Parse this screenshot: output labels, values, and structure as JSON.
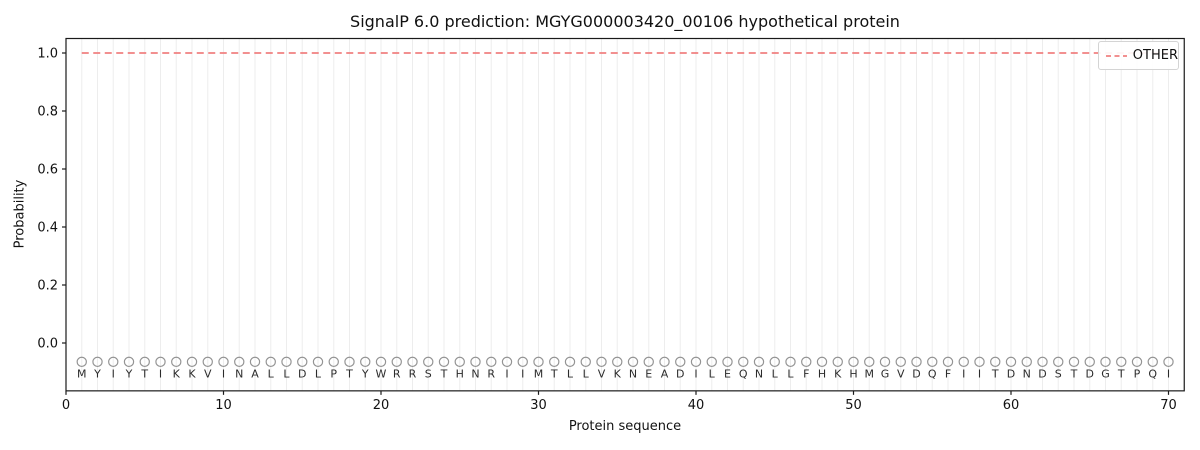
{
  "title": "SignalP 6.0 prediction: MGYG000003420_00106 hypothetical protein",
  "axes": {
    "x_label": "Protein sequence",
    "y_label": "Probability"
  },
  "legend": {
    "position": "upper right",
    "items": [
      {
        "label": "OTHER",
        "color": "#f08080",
        "line_style": "dashed"
      }
    ]
  },
  "colors": {
    "other_line": "#f08080",
    "grid_line": "#ededed",
    "marker_outline": "#949494",
    "letter_text": "#2b2b2b",
    "axis_text": "#111111",
    "spine": "#1a1a1a",
    "background": "#ffffff"
  },
  "chart_data": {
    "type": "line",
    "title": "SignalP 6.0 prediction: MGYG000003420_00106 hypothetical protein",
    "xlabel": "Protein sequence",
    "ylabel": "Probability",
    "x_ticks": [
      0,
      10,
      20,
      30,
      40,
      50,
      60,
      70
    ],
    "y_tick_labels": [
      "0.0",
      "0.2",
      "0.4",
      "0.6",
      "0.8",
      "1.0"
    ],
    "xlim": [
      0,
      71
    ],
    "ylim": [
      -0.165,
      1.05
    ],
    "grid": "vertical line at every residue position",
    "legend_position": "upper right",
    "sequence": "MYIYTIKKVINALLDLPTYWRRSTHNRIIMTLLVKNEADILEQNLLFHKHMGVDQFIITDNDSTDGTPQI",
    "sequence_length": 70,
    "marker_row_value": -0.065,
    "letter_row_value": -0.105,
    "series": [
      {
        "name": "OTHER",
        "style": "dashed",
        "color": "#f08080",
        "x_start": 1,
        "x_end": 70,
        "constant_value": 1.0
      }
    ]
  }
}
